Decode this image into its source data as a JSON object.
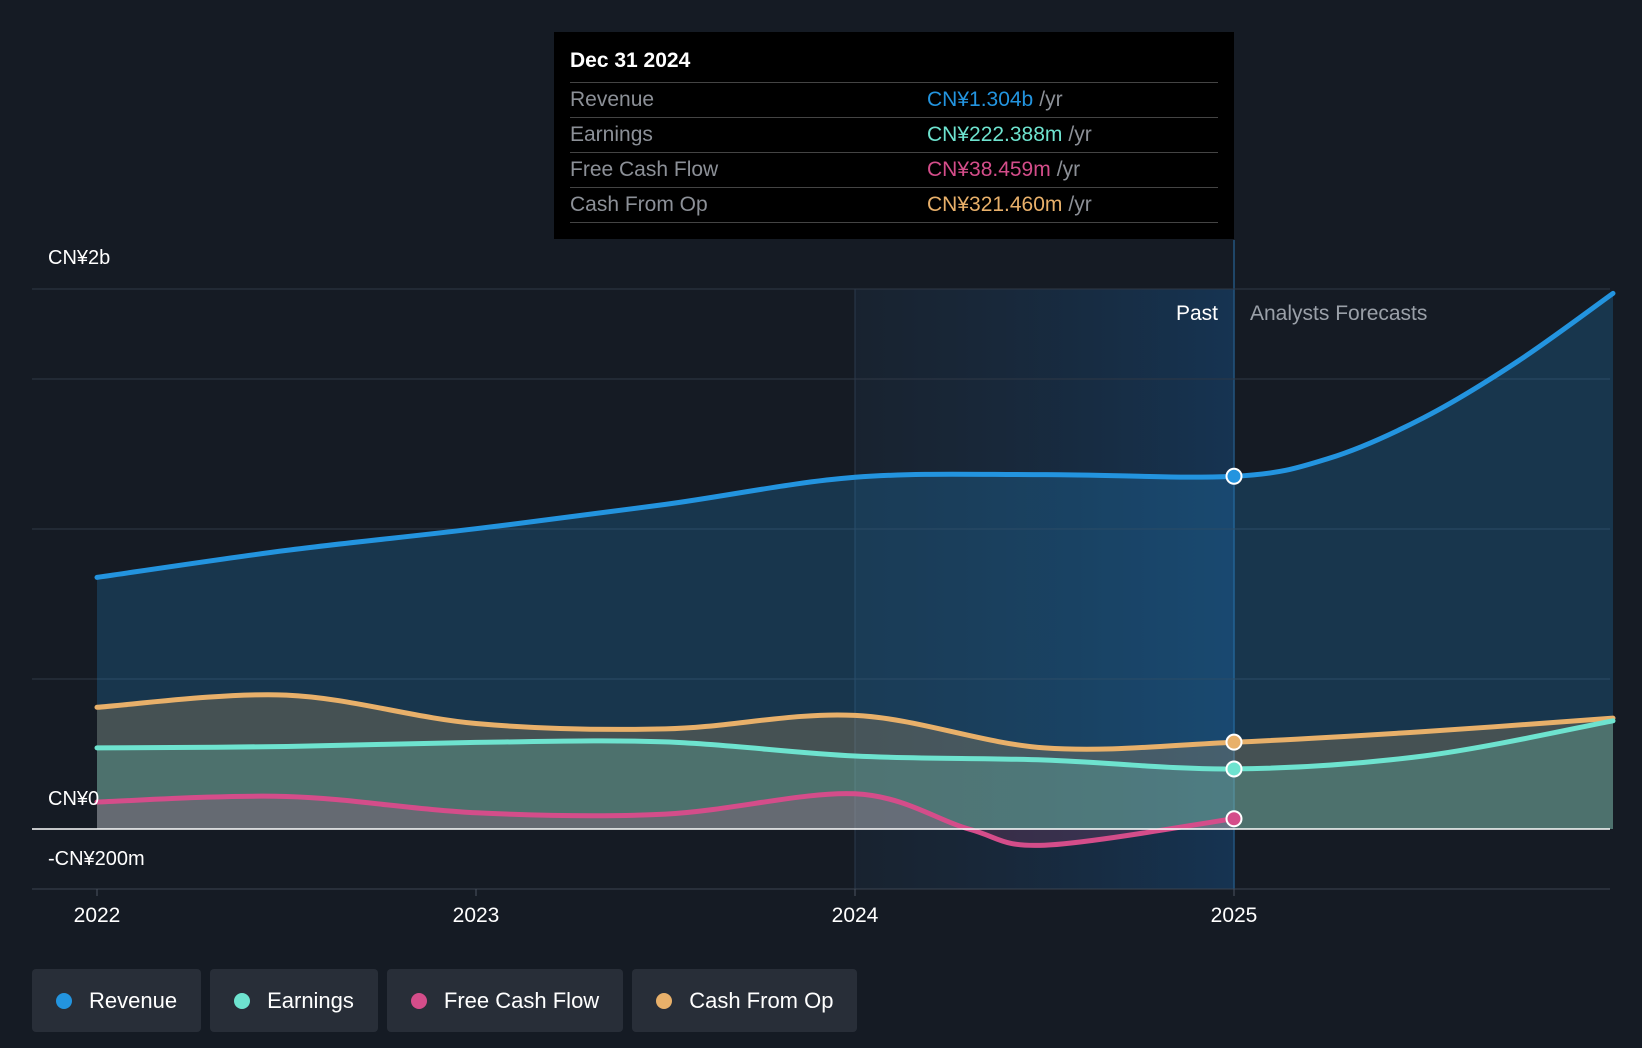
{
  "tooltip": {
    "date": "Dec 31 2024",
    "rows": [
      {
        "label": "Revenue",
        "value": "CN¥1.304b",
        "unit": "/yr",
        "color": "#2394df"
      },
      {
        "label": "Earnings",
        "value": "CN¥222.388m",
        "unit": "/yr",
        "color": "#6ee3cf"
      },
      {
        "label": "Free Cash Flow",
        "value": "CN¥38.459m",
        "unit": "/yr",
        "color": "#d44d8a"
      },
      {
        "label": "Cash From Op",
        "value": "CN¥321.460m",
        "unit": "/yr",
        "color": "#e8b06a"
      }
    ]
  },
  "chart_data": {
    "type": "line",
    "y_axis_labels": [
      "CN¥2b",
      "CN¥0",
      "-CN¥200m"
    ],
    "ylim": [
      -200,
      2000
    ],
    "x_ticks": [
      "2022",
      "2023",
      "2024",
      "2025"
    ],
    "past_label": "Past",
    "forecast_label": "Analysts Forecasts",
    "series": [
      {
        "name": "Revenue",
        "color": "#2394df",
        "x": [
          2022.0,
          2022.5,
          2023.0,
          2023.5,
          2024.0,
          2024.5,
          2025.0,
          2025.25,
          2025.5,
          2025.75,
          2026.0
        ],
        "values": [
          930,
          1030,
          1110,
          1200,
          1300,
          1310,
          1304,
          1370,
          1520,
          1730,
          1980
        ]
      },
      {
        "name": "Earnings",
        "color": "#6ee3cf",
        "x": [
          2022.0,
          2022.5,
          2023.0,
          2023.5,
          2024.0,
          2024.5,
          2025.0,
          2025.5,
          2026.0
        ],
        "values": [
          300,
          305,
          320,
          322,
          270,
          255,
          222,
          270,
          400
        ]
      },
      {
        "name": "Free Cash Flow",
        "color": "#d44d8a",
        "x": [
          2022.0,
          2022.5,
          2023.0,
          2023.5,
          2024.0,
          2024.3,
          2024.5,
          2025.0
        ],
        "values": [
          100,
          120,
          60,
          55,
          130,
          0,
          -60,
          38
        ]
      },
      {
        "name": "Cash From Op",
        "color": "#e8b06a",
        "x": [
          2022.0,
          2022.5,
          2023.0,
          2023.5,
          2024.0,
          2024.5,
          2025.0,
          2025.5,
          2026.0
        ],
        "values": [
          450,
          495,
          390,
          370,
          420,
          300,
          321,
          360,
          410
        ]
      }
    ]
  },
  "legend": [
    "Revenue",
    "Earnings",
    "Free Cash Flow",
    "Cash From Op"
  ]
}
